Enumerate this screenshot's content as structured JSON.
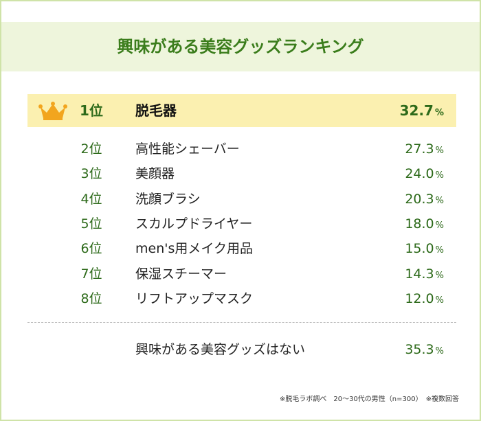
{
  "title": "興味がある美容グッズランキング",
  "rows": [
    {
      "rank": "1位",
      "item": "脱毛器",
      "percent": "32.7",
      "unit": "%"
    },
    {
      "rank": "2位",
      "item": "高性能シェーバー",
      "percent": "27.3",
      "unit": "%"
    },
    {
      "rank": "3位",
      "item": "美顔器",
      "percent": "24.0",
      "unit": "%"
    },
    {
      "rank": "4位",
      "item": "洗顔ブラシ",
      "percent": "20.3",
      "unit": "%"
    },
    {
      "rank": "5位",
      "item": "スカルプドライヤー",
      "percent": "18.0",
      "unit": "%"
    },
    {
      "rank": "6位",
      "item": "men's用メイク用品",
      "percent": "15.0",
      "unit": "%"
    },
    {
      "rank": "7位",
      "item": "保湿スチーマー",
      "percent": "14.3",
      "unit": "%"
    },
    {
      "rank": "8位",
      "item": "リフトアップマスク",
      "percent": "12.0",
      "unit": "%"
    }
  ],
  "none_row": {
    "item": "興味がある美容グッズはない",
    "percent": "35.3",
    "unit": "%"
  },
  "footnote": "※脱毛ラボ調べ　20〜30代の男性（n=300）　※複数回答"
}
